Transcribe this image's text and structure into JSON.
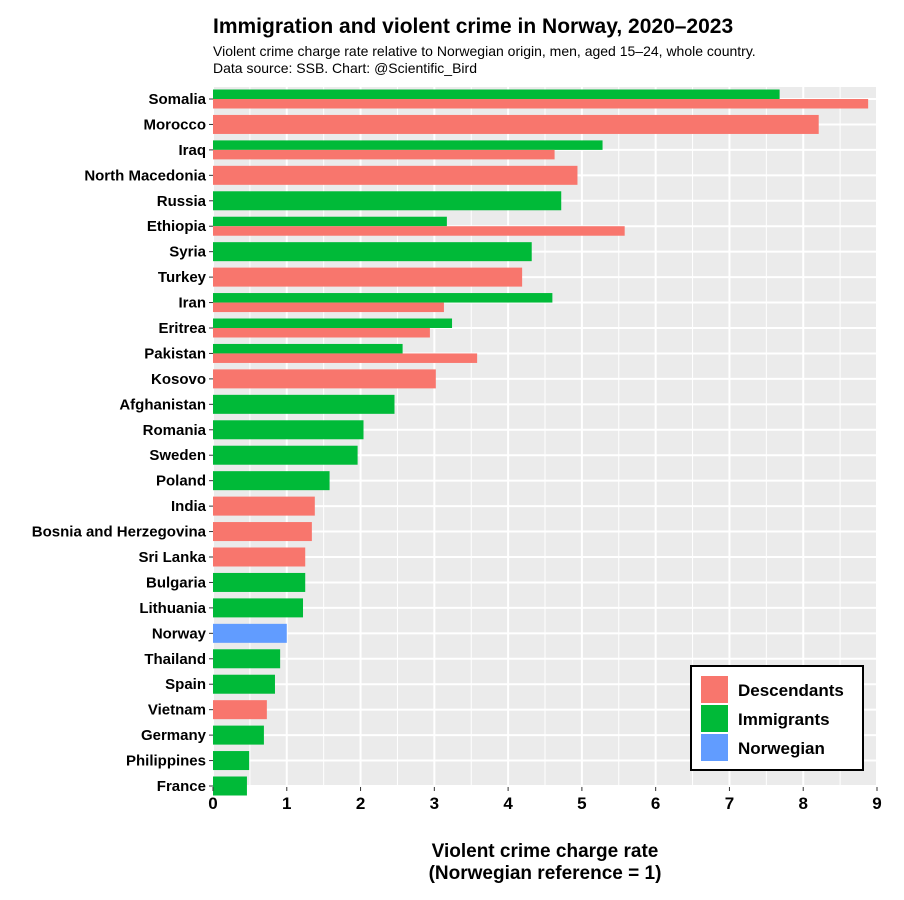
{
  "chart_data": {
    "type": "bar",
    "orientation": "horizontal",
    "title": "Immigration and violent crime in Norway, 2020–2023",
    "subtitle_lines": [
      "Violent crime charge rate relative to Norwegian origin, men, aged 15–24, whole country.",
      "Data source: SSB.  Chart: @Scientific_Bird"
    ],
    "xlabel_lines": [
      "Violent crime charge rate",
      "(Norwegian reference = 1)"
    ],
    "xlim": [
      0,
      9
    ],
    "xticks": [
      "0",
      "1",
      "2",
      "3",
      "4",
      "5",
      "6",
      "7",
      "8",
      "9"
    ],
    "grid": true,
    "legend_position": "bottom-right",
    "colors": {
      "Descendants": "#F8766D",
      "Immigrants": "#00BA38",
      "Norwegian": "#619CFF"
    },
    "legend": [
      "Descendants",
      "Immigrants",
      "Norwegian"
    ],
    "categories": [
      "Somalia",
      "Morocco",
      "Iraq",
      "North Macedonia",
      "Russia",
      "Ethiopia",
      "Syria",
      "Turkey",
      "Iran",
      "Eritrea",
      "Pakistan",
      "Kosovo",
      "Afghanistan",
      "Romania",
      "Sweden",
      "Poland",
      "India",
      "Bosnia and Herzegovina",
      "Sri Lanka",
      "Bulgaria",
      "Lithuania",
      "Norway",
      "Thailand",
      "Spain",
      "Vietnam",
      "Germany",
      "Philippines",
      "France"
    ],
    "series": [
      {
        "name": "Immigrants",
        "values": [
          7.68,
          null,
          5.28,
          null,
          4.72,
          3.17,
          4.32,
          null,
          4.6,
          3.24,
          2.57,
          null,
          2.46,
          2.04,
          1.96,
          1.58,
          null,
          null,
          null,
          1.25,
          1.22,
          null,
          0.91,
          0.84,
          null,
          0.69,
          0.49,
          0.46
        ]
      },
      {
        "name": "Descendants",
        "values": [
          8.88,
          8.21,
          4.63,
          4.94,
          null,
          5.58,
          null,
          4.19,
          3.13,
          2.94,
          3.58,
          3.02,
          null,
          null,
          null,
          null,
          1.38,
          1.34,
          1.25,
          null,
          null,
          null,
          null,
          null,
          0.73,
          null,
          null,
          null
        ]
      },
      {
        "name": "Norwegian",
        "values": [
          null,
          null,
          null,
          null,
          null,
          null,
          null,
          null,
          null,
          null,
          null,
          null,
          null,
          null,
          null,
          null,
          null,
          null,
          null,
          null,
          null,
          1.0,
          null,
          null,
          null,
          null,
          null,
          null
        ]
      }
    ]
  }
}
